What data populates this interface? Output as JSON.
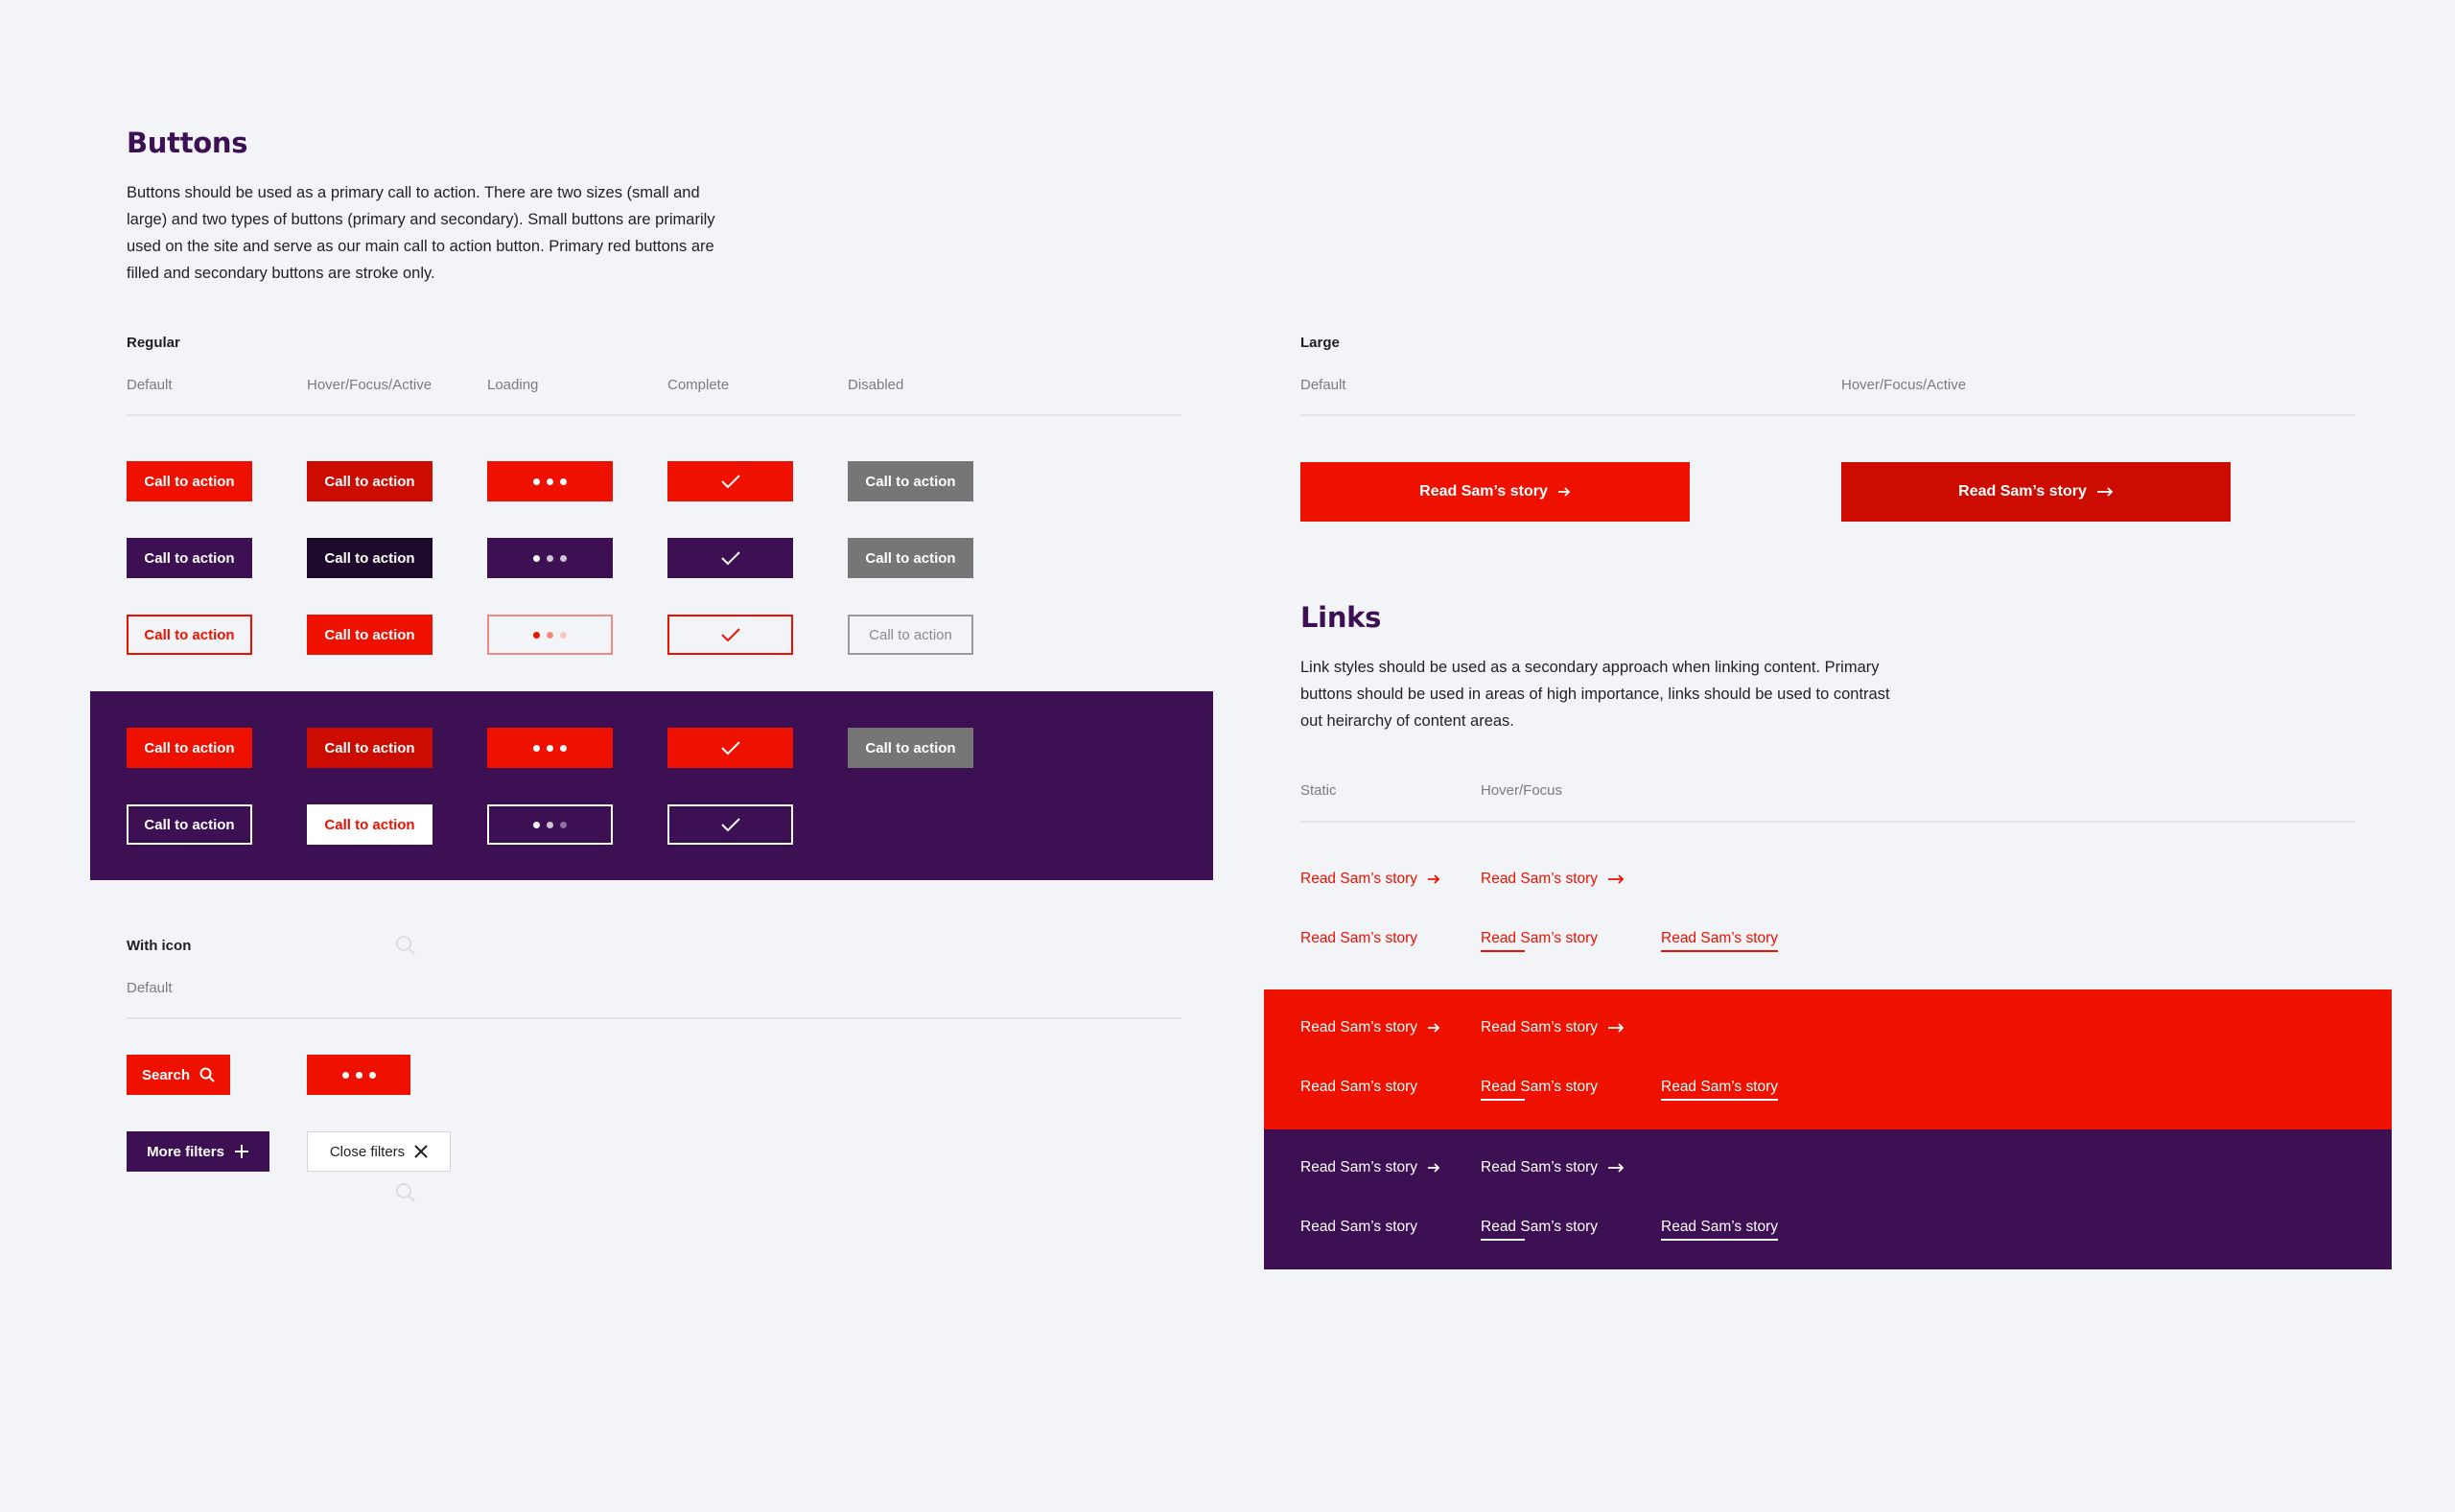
{
  "buttons_section": {
    "title": "Buttons",
    "description": "Buttons should be used as a primary call to action. There are two sizes (small and large) and two types of buttons (primary and secondary). Small buttons are primarily used on the site and serve as our main call to action button. Primary red buttons are filled and secondary buttons are stroke only.",
    "regular": {
      "label": "Regular",
      "columns": [
        "Default",
        "Hover/Focus/Active",
        "Loading",
        "Complete",
        "Disabled"
      ],
      "button_label": "Call to action"
    },
    "large": {
      "label": "Large",
      "columns": [
        "Default",
        "Hover/Focus/Active"
      ],
      "button_label": "Read Sam’s story"
    },
    "with_icon": {
      "label": "With icon",
      "columns": [
        "Default"
      ],
      "search_label": "Search",
      "more_filters_label": "More filters",
      "close_filters_label": "Close filters"
    }
  },
  "links_section": {
    "title": "Links",
    "description": "Link styles should be used as a secondary approach when linking content. Primary buttons should be used in areas of high importance, links should be used to contrast out heirarchy of content areas.",
    "columns": [
      "Static",
      "Hover/Focus"
    ],
    "link_label": "Read Sam’s story"
  },
  "colors": {
    "red": "#ef1100",
    "red_dark": "#cc0c00",
    "purple": "#3c1053",
    "purple_dark": "#1e0a2a",
    "grey": "#767676",
    "background": "#f3f4f8"
  },
  "icons": [
    "arrow-right-icon",
    "check-icon",
    "search-icon",
    "plus-icon",
    "close-icon",
    "loading-dots-icon"
  ]
}
